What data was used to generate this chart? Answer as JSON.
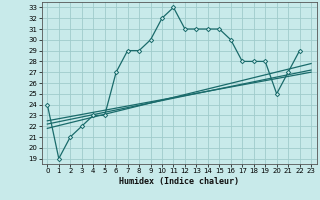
{
  "xlabel": "Humidex (Indice chaleur)",
  "background_color": "#c8eaea",
  "grid_color": "#a0cccc",
  "line_color": "#1a6b6b",
  "xlim": [
    -0.5,
    23.5
  ],
  "ylim": [
    18.5,
    33.5
  ],
  "xticks": [
    0,
    1,
    2,
    3,
    4,
    5,
    6,
    7,
    8,
    9,
    10,
    11,
    12,
    13,
    14,
    15,
    16,
    17,
    18,
    19,
    20,
    21,
    22,
    23
  ],
  "yticks": [
    19,
    20,
    21,
    22,
    23,
    24,
    25,
    26,
    27,
    28,
    29,
    30,
    31,
    32,
    33
  ],
  "main_y": [
    24,
    19,
    21,
    22,
    23,
    23,
    27,
    29,
    29,
    30,
    32,
    33,
    31,
    31,
    31,
    31,
    30,
    28,
    28,
    28,
    25,
    27,
    29
  ],
  "main_x": [
    0,
    1,
    2,
    3,
    4,
    5,
    6,
    7,
    8,
    9,
    10,
    11,
    12,
    13,
    14,
    15,
    16,
    17,
    18,
    19,
    20,
    21,
    22
  ],
  "reg_lines": [
    {
      "x": [
        0,
        23
      ],
      "y": [
        22.2,
        27.2
      ]
    },
    {
      "x": [
        0,
        23
      ],
      "y": [
        22.5,
        27.0
      ]
    },
    {
      "x": [
        0,
        23
      ],
      "y": [
        21.8,
        27.8
      ]
    }
  ],
  "marker": "D",
  "markersize": 2.2,
  "linewidth": 0.9,
  "tick_fontsize": 5.0,
  "xlabel_fontsize": 6.0
}
